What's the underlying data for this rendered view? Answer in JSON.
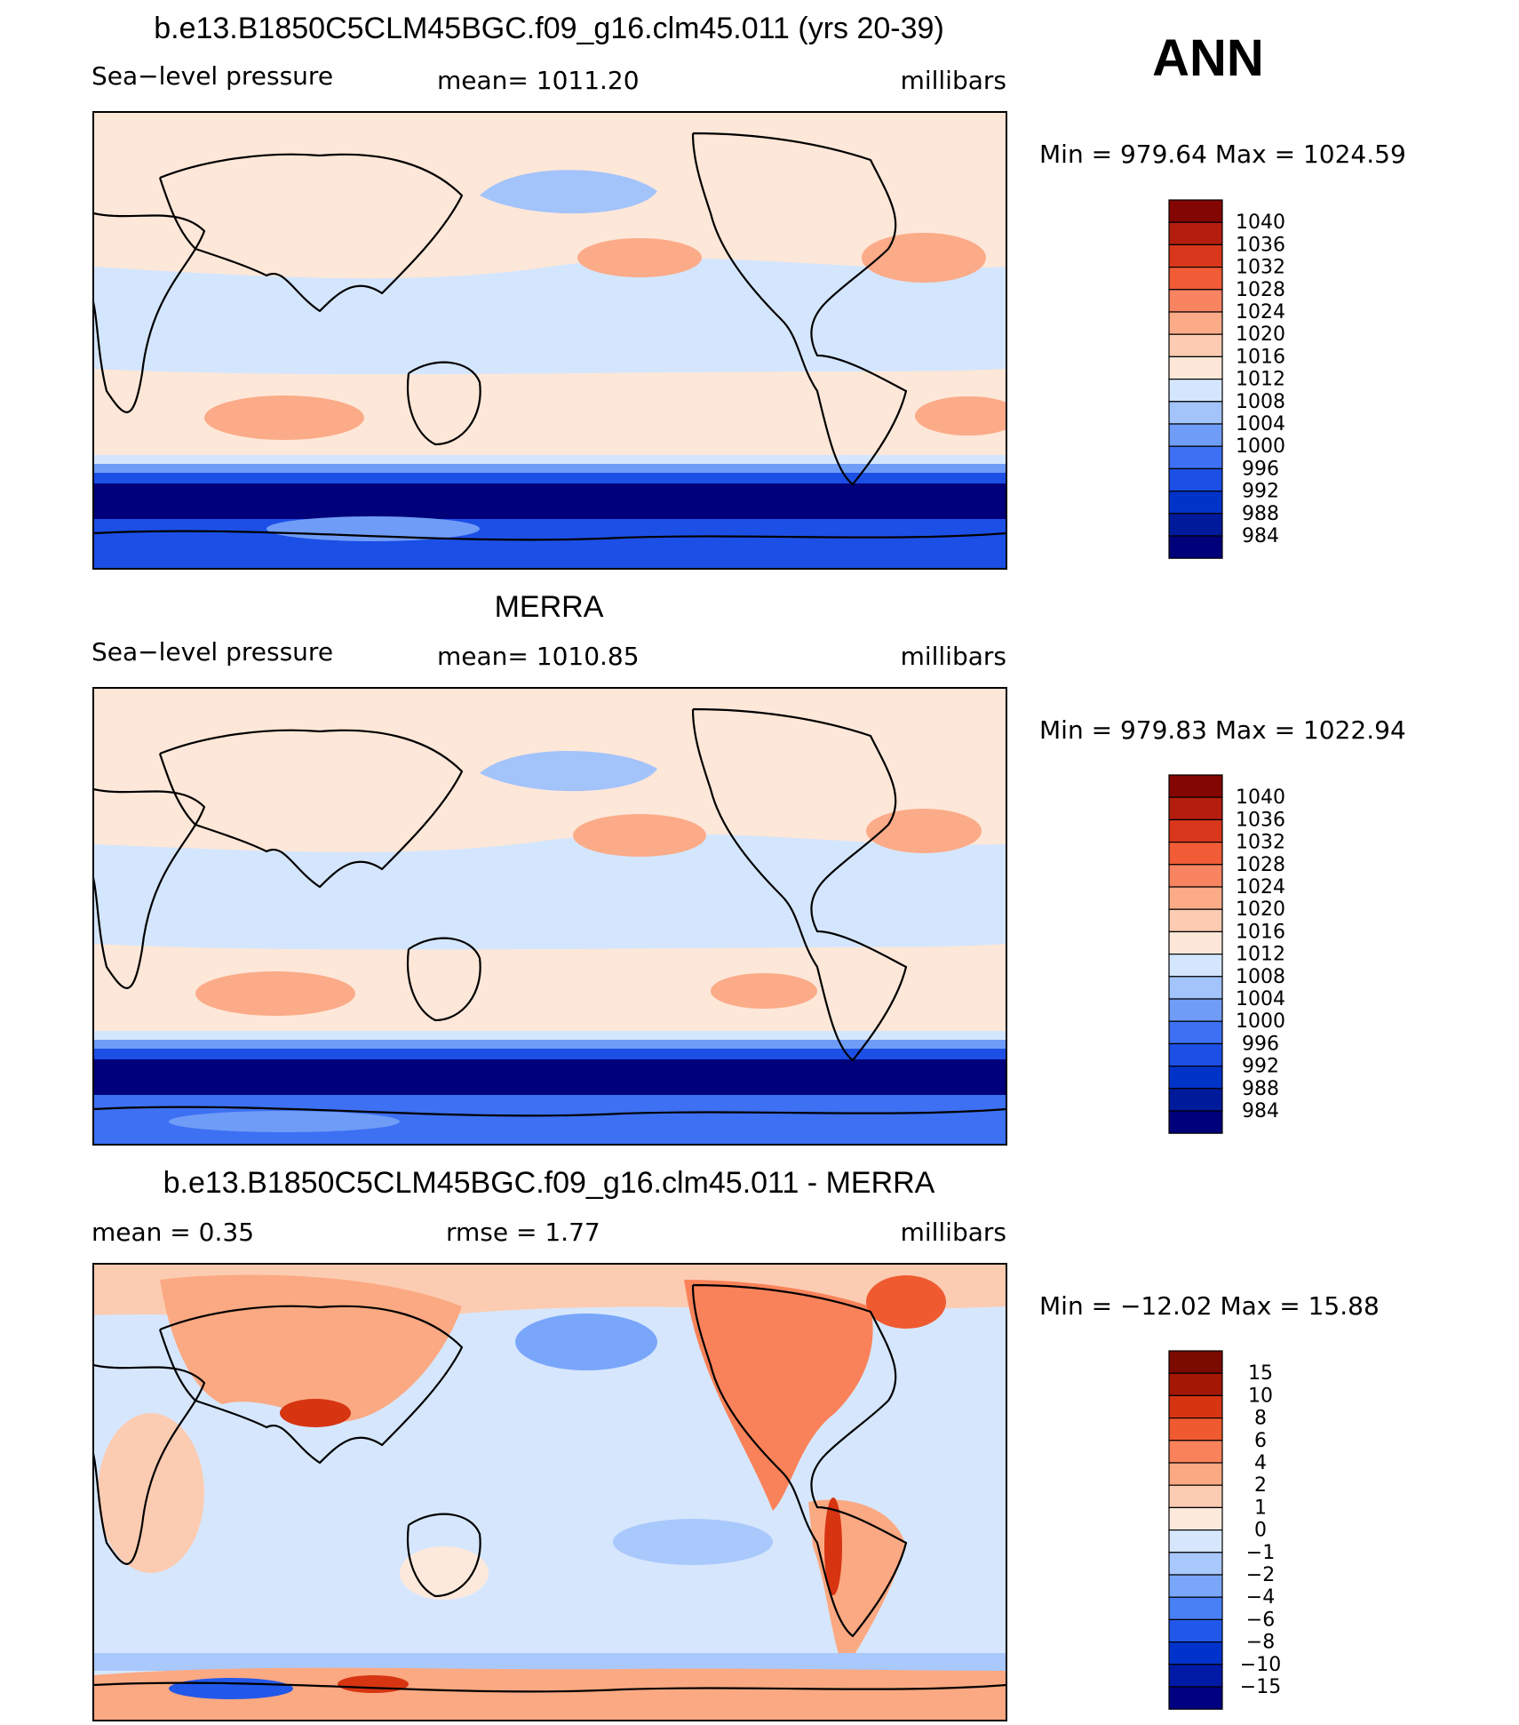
{
  "season": "ANN",
  "colors": {
    "abs": [
      "#00007a",
      "#001a9c",
      "#0033c8",
      "#1c4fe6",
      "#3d70f2",
      "#6f9cf7",
      "#a3c3fb",
      "#d4e6fd",
      "#fde7d8",
      "#fccbb1",
      "#fbab88",
      "#f98462",
      "#f15b36",
      "#d9371c",
      "#b51e0e",
      "#830603"
    ],
    "diff": [
      "#000080",
      "#001aa6",
      "#0033cc",
      "#2258ea",
      "#4a80f5",
      "#7aa6fa",
      "#a9c8fc",
      "#d6e7fd",
      "#fde9dc",
      "#fcccb2",
      "#fba982",
      "#f9825a",
      "#ef5a30",
      "#d73412",
      "#a51705",
      "#7b0a01"
    ]
  },
  "chart_data": [
    {
      "type": "heatmap",
      "title": "b.e13.B1850C5CLM45BGC.f09_g16.clm45.011 (yrs 20-39)",
      "variable": "Sea−level pressure",
      "mean_text": "mean=  1011.20",
      "units": "millibars",
      "minmax_text": "Min  =  979.64  Max  =  1024.59",
      "min": 979.64,
      "max": 1024.59,
      "mean": 1011.2,
      "colorbar_levels": [
        "1040",
        "1036",
        "1032",
        "1028",
        "1024",
        "1020",
        "1016",
        "1012",
        "1008",
        "1004",
        "1000",
        "996",
        "992",
        "988",
        "984"
      ]
    },
    {
      "type": "heatmap",
      "title": "MERRA",
      "variable": "Sea−level pressure",
      "mean_text": "mean=  1010.85",
      "units": "millibars",
      "minmax_text": "Min  =  979.83  Max  =  1022.94",
      "min": 979.83,
      "max": 1022.94,
      "mean": 1010.85,
      "colorbar_levels": [
        "1040",
        "1036",
        "1032",
        "1028",
        "1024",
        "1020",
        "1016",
        "1012",
        "1008",
        "1004",
        "1000",
        "996",
        "992",
        "988",
        "984"
      ]
    },
    {
      "type": "heatmap",
      "title": "b.e13.B1850C5CLM45BGC.f09_g16.clm45.011 - MERRA",
      "mean_text": "mean  =      0.35",
      "rmse_text": "rmse  =      1.77",
      "units": "millibars",
      "minmax_text": "Min  =  −12.02  Max  =     15.88",
      "min": -12.02,
      "max": 15.88,
      "mean": 0.35,
      "rmse": 1.77,
      "colorbar_levels": [
        "15",
        "10",
        "8",
        "6",
        "4",
        "2",
        "1",
        "0",
        "−1",
        "−2",
        "−4",
        "−6",
        "−8",
        "−10",
        "−15"
      ]
    }
  ]
}
